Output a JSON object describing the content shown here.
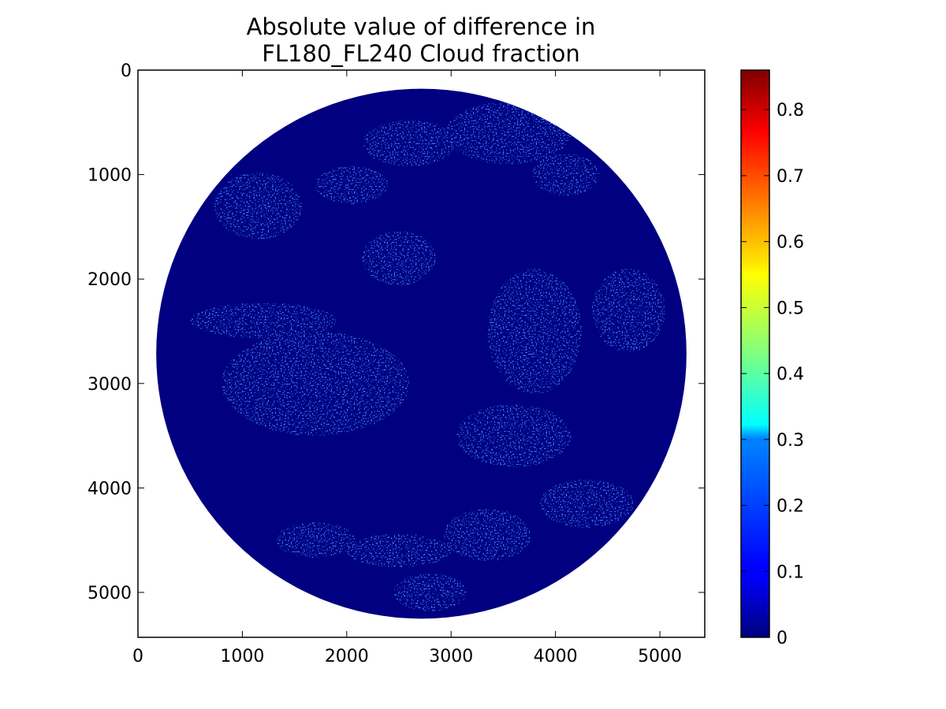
{
  "chart_data": {
    "type": "heatmap",
    "title": [
      "Absolute value of difference in",
      "FL180_FL240 Cloud fraction"
    ],
    "xlabel": "",
    "ylabel": "",
    "xlim": [
      0,
      5430
    ],
    "ylim": [
      5430,
      0
    ],
    "y_axis_inverted": true,
    "x_ticks": [
      0,
      1000,
      2000,
      3000,
      4000,
      5000
    ],
    "y_ticks": [
      0,
      1000,
      2000,
      3000,
      4000,
      5000
    ],
    "x_tick_labels": [
      "0",
      "1000",
      "2000",
      "3000",
      "4000",
      "5000"
    ],
    "y_tick_labels": [
      "0",
      "1000",
      "2000",
      "3000",
      "4000",
      "5000"
    ],
    "colormap": "jet",
    "colorbar": {
      "range": [
        0,
        0.86
      ],
      "ticks": [
        0,
        0.1,
        0.2,
        0.3,
        0.4,
        0.5,
        0.6,
        0.7,
        0.8
      ],
      "tick_labels": [
        "0",
        "0.1",
        "0.2",
        "0.3",
        "0.4",
        "0.5",
        "0.6",
        "0.7",
        "0.8"
      ],
      "colors": [
        "#00007f",
        "#0000ff",
        "#007fff",
        "#00ffff",
        "#7fff7f",
        "#ffff00",
        "#ff7f00",
        "#ff0000",
        "#7f0000"
      ]
    },
    "disk": {
      "center": [
        2715,
        2715
      ],
      "radius": 2540,
      "background_color": "#000080"
    },
    "data_summary": "Values outside the disk are empty; inside the disk most values are near 0, with scattered low values (about 0.05-0.2) in cloud-edge streaks and a few isolated higher pixels.",
    "bright_regions": [
      {
        "x": 2050,
        "y": 1100,
        "rx": 350,
        "ry": 180,
        "value": 0.12
      },
      {
        "x": 2600,
        "y": 700,
        "rx": 450,
        "ry": 220,
        "value": 0.15
      },
      {
        "x": 3550,
        "y": 600,
        "rx": 600,
        "ry": 300,
        "value": 0.12
      },
      {
        "x": 4100,
        "y": 1000,
        "rx": 320,
        "ry": 200,
        "value": 0.1
      },
      {
        "x": 1150,
        "y": 1300,
        "rx": 420,
        "ry": 320,
        "value": 0.1
      },
      {
        "x": 1200,
        "y": 2400,
        "rx": 700,
        "ry": 170,
        "value": 0.14
      },
      {
        "x": 2500,
        "y": 1800,
        "rx": 350,
        "ry": 260,
        "value": 0.09
      },
      {
        "x": 3800,
        "y": 2500,
        "rx": 450,
        "ry": 600,
        "value": 0.1
      },
      {
        "x": 4700,
        "y": 2300,
        "rx": 350,
        "ry": 400,
        "value": 0.08
      },
      {
        "x": 3600,
        "y": 3500,
        "rx": 550,
        "ry": 300,
        "value": 0.1
      },
      {
        "x": 2500,
        "y": 4600,
        "rx": 500,
        "ry": 160,
        "value": 0.14
      },
      {
        "x": 3350,
        "y": 4450,
        "rx": 420,
        "ry": 250,
        "value": 0.14
      },
      {
        "x": 4300,
        "y": 4150,
        "rx": 450,
        "ry": 230,
        "value": 0.1
      },
      {
        "x": 2800,
        "y": 5000,
        "rx": 350,
        "ry": 180,
        "value": 0.12
      },
      {
        "x": 1700,
        "y": 4500,
        "rx": 380,
        "ry": 170,
        "value": 0.1
      },
      {
        "x": 1700,
        "y": 3000,
        "rx": 900,
        "ry": 500,
        "value": 0.03
      }
    ]
  }
}
